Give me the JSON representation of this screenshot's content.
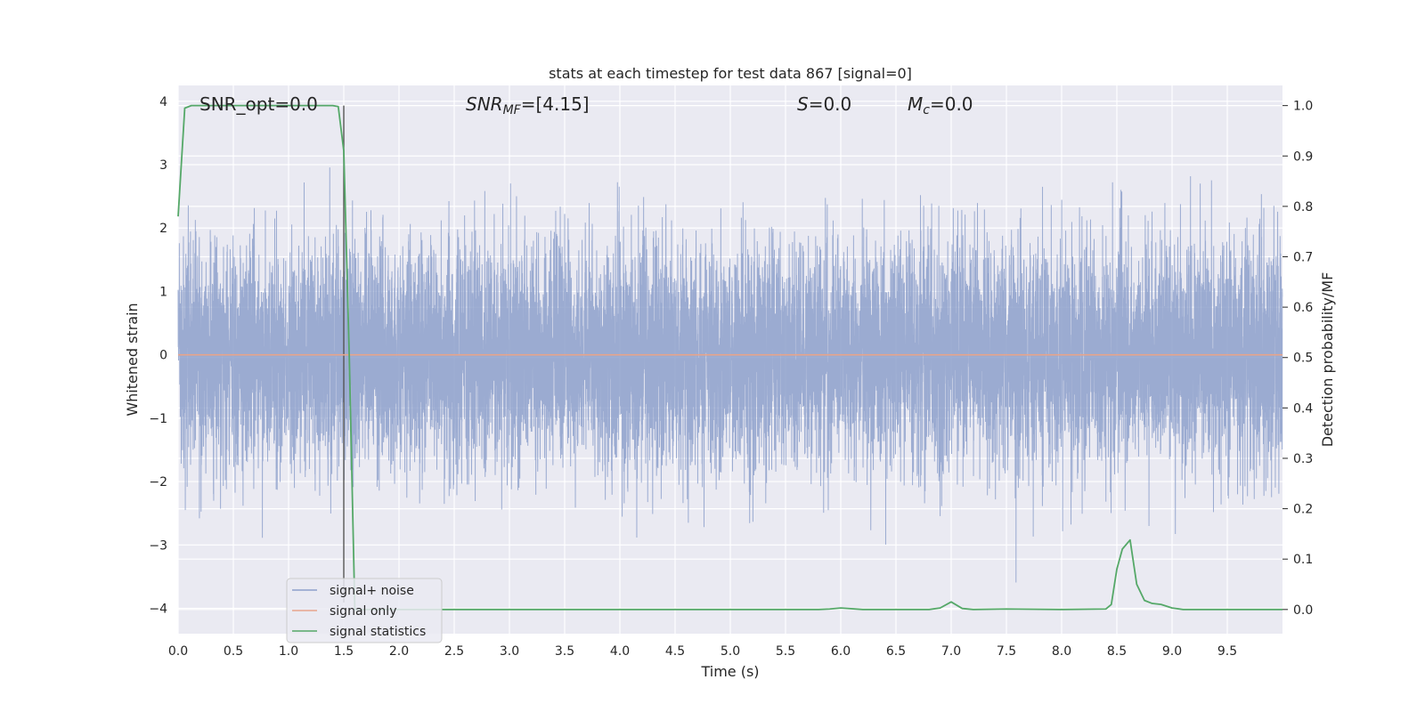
{
  "chart_data": {
    "type": "line",
    "title": "stats at each timestep for test data 867 [signal=0]",
    "xlabel": "Time (s)",
    "ylabel": "Whitened strain",
    "y2label": "Detection probability/MF",
    "xlim": [
      0.0,
      10.0
    ],
    "ylim": [
      -4.4,
      4.25
    ],
    "y2lim": [
      -0.048,
      1.04
    ],
    "x_ticks": [
      "0.0",
      "0.5",
      "1.0",
      "1.5",
      "2.0",
      "2.5",
      "3.0",
      "3.5",
      "4.0",
      "4.5",
      "5.0",
      "5.5",
      "6.0",
      "6.5",
      "7.0",
      "7.5",
      "8.0",
      "8.5",
      "9.0",
      "9.5"
    ],
    "y_ticks": [
      "4",
      "3",
      "2",
      "1",
      "0",
      "−1",
      "−2",
      "−3",
      "−4"
    ],
    "y2_ticks": [
      "1.0",
      "0.9",
      "0.8",
      "0.7",
      "0.6",
      "0.5",
      "0.4",
      "0.3",
      "0.2",
      "0.1",
      "0.0"
    ],
    "grid": true,
    "legend_position": "lower-left",
    "annotations": {
      "snr_opt": "SNR_opt=0.0",
      "snr_mf": "SNR",
      "snr_mf_sub": "MF",
      "snr_mf_value": "=[4.15]",
      "s_sym": "S",
      "s_value": "=0.0",
      "mc_sym": "M",
      "mc_sub": "c",
      "mc_value": "=0.0"
    },
    "marker_line_x": 1.5,
    "series": [
      {
        "name": "signal+ noise",
        "color": "#8da0cb",
        "axis": "left",
        "style": "noise",
        "envelope_typical": 1.5,
        "envelope_max": 3.8,
        "sample_rate_hz": 1000
      },
      {
        "name": "signal only",
        "color": "#e8a48b",
        "axis": "left",
        "x": [
          0.0,
          10.0
        ],
        "values": [
          0.0,
          0.0
        ]
      },
      {
        "name": "signal statistics",
        "color": "#55a868",
        "axis": "right",
        "x": [
          0.0,
          0.06,
          0.12,
          0.5,
          1.0,
          1.4,
          1.45,
          1.5,
          1.55,
          1.6,
          2.0,
          3.0,
          4.0,
          5.0,
          5.8,
          5.9,
          6.0,
          6.2,
          6.5,
          6.8,
          6.9,
          7.0,
          7.1,
          7.2,
          7.5,
          8.0,
          8.4,
          8.45,
          8.5,
          8.55,
          8.62,
          8.68,
          8.75,
          8.82,
          8.9,
          9.0,
          9.1,
          9.5,
          10.0
        ],
        "values": [
          0.78,
          0.995,
          1.0,
          1.0,
          1.0,
          1.0,
          0.998,
          0.91,
          0.5,
          0.0,
          0.0,
          0.0,
          0.0,
          0.0,
          0.0,
          0.001,
          0.003,
          0.0,
          0.0,
          0.0,
          0.003,
          0.015,
          0.002,
          0.0,
          0.001,
          0.0,
          0.001,
          0.01,
          0.08,
          0.12,
          0.138,
          0.05,
          0.018,
          0.012,
          0.01,
          0.003,
          0.0,
          0.0,
          0.0
        ]
      }
    ]
  }
}
